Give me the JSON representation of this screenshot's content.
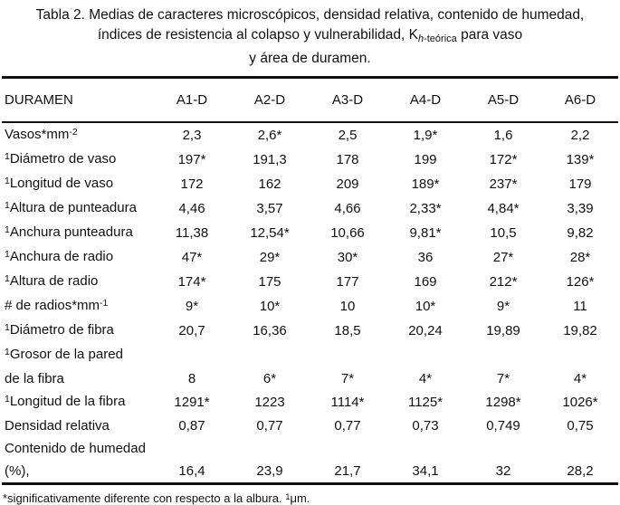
{
  "caption": {
    "line1": "Tabla 2. Medias de caracteres microscópicos, densidad relativa, contenido de humedad,",
    "line2_pre": "índices de resistencia al colapso y vulnerabilidad, K",
    "line2_sub_italic": "h",
    "line2_sub_rest": "-teórica",
    "line2_post": " para vaso",
    "line3": "y área de duramen."
  },
  "table": {
    "header": [
      "DURAMEN",
      "A1-D",
      "A2-D",
      "A3-D",
      "A4-D",
      "A5-D",
      "A6-D"
    ],
    "rows": [
      {
        "sup_before": "",
        "label": "Vasos*mm",
        "sup_after": "-2",
        "values": [
          "2,3",
          "2,6*",
          "2,5",
          "1,9*",
          "1,6",
          "2,2"
        ]
      },
      {
        "sup_before": "1",
        "label": "Diámetro de vaso",
        "sup_after": "",
        "values": [
          "197*",
          "191,3",
          "178",
          "199",
          "172*",
          "139*"
        ]
      },
      {
        "sup_before": "1",
        "label": "Longitud de vaso",
        "sup_after": "",
        "values": [
          "172",
          "162",
          "209",
          "189*",
          "237*",
          "179"
        ]
      },
      {
        "sup_before": "1",
        "label": "Altura de punteadura",
        "sup_after": "",
        "values": [
          "4,46",
          "3,57",
          "4,66",
          "2,33*",
          "4,84*",
          "3,39"
        ]
      },
      {
        "sup_before": "1",
        "label": "Anchura punteadura",
        "sup_after": "",
        "values": [
          "11,38",
          "12,54*",
          "10,66",
          "9,81*",
          "10,5",
          "9,82"
        ]
      },
      {
        "sup_before": "1",
        "label": "Anchura de radio",
        "sup_after": "",
        "values": [
          "47*",
          "29*",
          "30*",
          "36",
          "27*",
          "28*"
        ]
      },
      {
        "sup_before": "1",
        "label": "Altura de radio",
        "sup_after": "",
        "values": [
          "174*",
          "175",
          "177",
          "169",
          "212*",
          "126*"
        ]
      },
      {
        "sup_before": "",
        "label": "# de radios*mm",
        "sup_after": "-1",
        "values": [
          "9*",
          "10*",
          "10",
          "10*",
          "9*",
          "11"
        ]
      },
      {
        "sup_before": "1",
        "label": "Diámetro de fibra",
        "sup_after": "",
        "values": [
          "20,7",
          "16,36",
          "18,5",
          "20,24",
          "19,89",
          "19,82"
        ]
      },
      {
        "sup_before": "1",
        "label": "Grosor de la pared",
        "sup_after": "",
        "values": [
          "",
          "",
          "",
          "",
          "",
          ""
        ]
      },
      {
        "sup_before": "",
        "label": "de la fibra",
        "sup_after": "",
        "values": [
          "8",
          "6*",
          "7*",
          "4*",
          "7*",
          "4*"
        ]
      },
      {
        "sup_before": "1",
        "label": "Longitud de la fibra",
        "sup_after": "",
        "values": [
          "1291*",
          "1223",
          "1114*",
          "1125*",
          "1298*",
          "1026*"
        ]
      },
      {
        "sup_before": "",
        "label": "Densidad relativa",
        "sup_after": "",
        "values": [
          "0,87",
          "0,77",
          "0,77",
          "0,73",
          "0,749",
          "0,75"
        ]
      },
      {
        "sup_before": "",
        "label": "Contenido de humedad",
        "sup_after": "",
        "values": [
          "",
          "",
          "",
          "",
          "",
          ""
        ]
      },
      {
        "sup_before": "",
        "label": "(%),",
        "sup_after": "",
        "values": [
          "16,4",
          "23,9",
          "21,7",
          "34,1",
          "32",
          "28,2"
        ]
      }
    ]
  },
  "footnote": {
    "pre": "*significativamente diferente con respecto a la albura. ",
    "sup": "1",
    "post": "μm."
  }
}
